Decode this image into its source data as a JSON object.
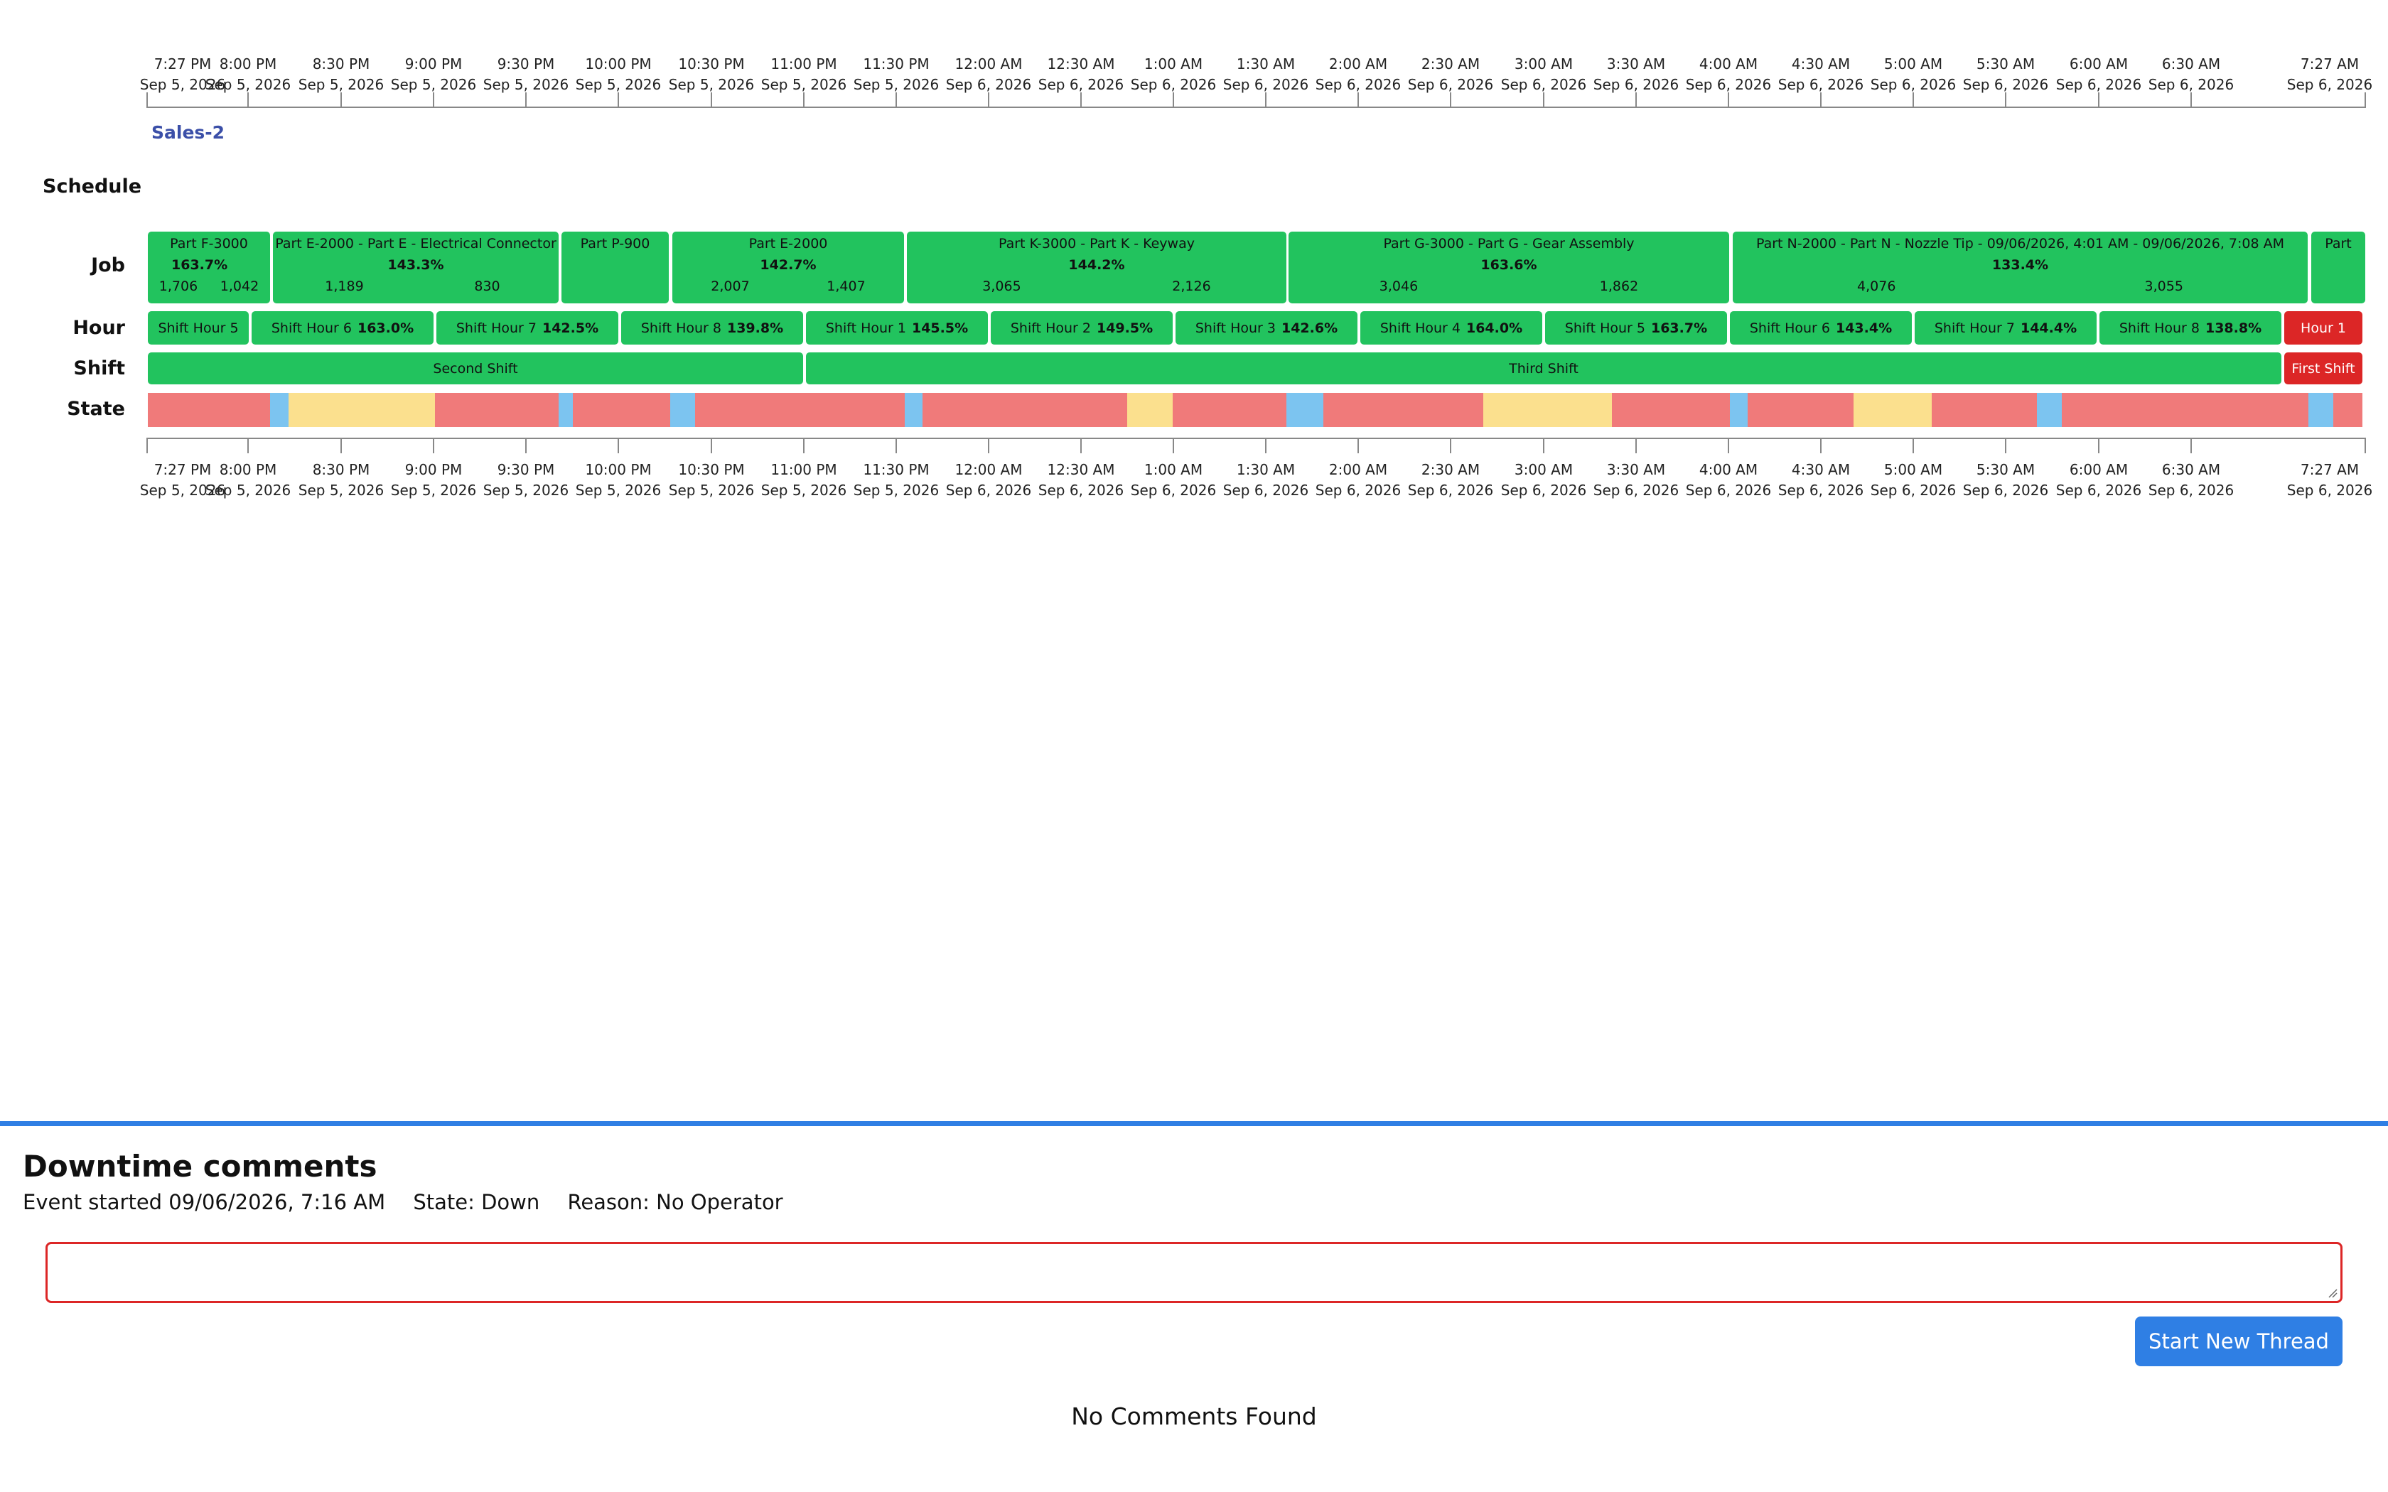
{
  "axis_ticks": [
    {
      "time": "7:27 PM",
      "date": "Sep 5, 2026"
    },
    {
      "time": "8:00 PM",
      "date": "Sep 5, 2026"
    },
    {
      "time": "8:30 PM",
      "date": "Sep 5, 2026"
    },
    {
      "time": "9:00 PM",
      "date": "Sep 5, 2026"
    },
    {
      "time": "9:30 PM",
      "date": "Sep 5, 2026"
    },
    {
      "time": "10:00 PM",
      "date": "Sep 5, 2026"
    },
    {
      "time": "10:30 PM",
      "date": "Sep 5, 2026"
    },
    {
      "time": "11:00 PM",
      "date": "Sep 5, 2026"
    },
    {
      "time": "11:30 PM",
      "date": "Sep 5, 2026"
    },
    {
      "time": "12:00 AM",
      "date": "Sep 6, 2026"
    },
    {
      "time": "12:30 AM",
      "date": "Sep 6, 2026"
    },
    {
      "time": "1:00 AM",
      "date": "Sep 6, 2026"
    },
    {
      "time": "1:30 AM",
      "date": "Sep 6, 2026"
    },
    {
      "time": "2:00 AM",
      "date": "Sep 6, 2026"
    },
    {
      "time": "2:30 AM",
      "date": "Sep 6, 2026"
    },
    {
      "time": "3:00 AM",
      "date": "Sep 6, 2026"
    },
    {
      "time": "3:30 AM",
      "date": "Sep 6, 2026"
    },
    {
      "time": "4:00 AM",
      "date": "Sep 6, 2026"
    },
    {
      "time": "4:30 AM",
      "date": "Sep 6, 2026"
    },
    {
      "time": "5:00 AM",
      "date": "Sep 6, 2026"
    },
    {
      "time": "5:30 AM",
      "date": "Sep 6, 2026"
    },
    {
      "time": "6:00 AM",
      "date": "Sep 6, 2026"
    },
    {
      "time": "6:30 AM",
      "date": "Sep 6, 2026"
    },
    {
      "time": "7:27 AM",
      "date": "Sep 6, 2026"
    }
  ],
  "line_name": "Sales-2",
  "row_labels": {
    "schedule": "Schedule",
    "job": "Job",
    "hour": "Hour",
    "shift": "Shift",
    "state": "State"
  },
  "jobs": [
    {
      "title": "Part F-3000",
      "pct": "163.7%",
      "a": "1,706",
      "b": "1,042"
    },
    {
      "title": "Part E-2000 - Part E - Electrical Connector",
      "pct": "143.3%",
      "a": "1,189",
      "b": "830"
    },
    {
      "title": "Part P-900",
      "pct": "",
      "a": "",
      "b": ""
    },
    {
      "title": "Part E-2000",
      "pct": "142.7%",
      "a": "2,007",
      "b": "1,407"
    },
    {
      "title": "Part K-3000 - Part K - Keyway",
      "pct": "144.2%",
      "a": "3,065",
      "b": "2,126"
    },
    {
      "title": "Part G-3000 - Part G - Gear Assembly",
      "pct": "163.6%",
      "a": "3,046",
      "b": "1,862"
    },
    {
      "title": "Part N-2000 - Part N - Nozzle Tip - 09/06/2026, 4:01 AM - 09/06/2026, 7:08 AM",
      "pct": "133.4%",
      "a": "4,076",
      "b": "3,055"
    },
    {
      "title": "Part",
      "pct": "",
      "a": "",
      "b": ""
    }
  ],
  "hours": [
    {
      "label": "Shift Hour 5",
      "pct": "",
      "color": "green"
    },
    {
      "label": "Shift Hour 6",
      "pct": "163.0%",
      "color": "green"
    },
    {
      "label": "Shift Hour 7",
      "pct": "142.5%",
      "color": "green"
    },
    {
      "label": "Shift Hour 8",
      "pct": "139.8%",
      "color": "green"
    },
    {
      "label": "Shift Hour 1",
      "pct": "145.5%",
      "color": "green"
    },
    {
      "label": "Shift Hour 2",
      "pct": "149.5%",
      "color": "green"
    },
    {
      "label": "Shift Hour 3",
      "pct": "142.6%",
      "color": "green"
    },
    {
      "label": "Shift Hour 4",
      "pct": "164.0%",
      "color": "green"
    },
    {
      "label": "Shift Hour 5",
      "pct": "163.7%",
      "color": "green"
    },
    {
      "label": "Shift Hour 6",
      "pct": "143.4%",
      "color": "green"
    },
    {
      "label": "Shift Hour 7",
      "pct": "144.4%",
      "color": "green"
    },
    {
      "label": "Shift Hour 8",
      "pct": "138.8%",
      "color": "green"
    },
    {
      "label": "Hour 1",
      "pct": "",
      "color": "red"
    }
  ],
  "shifts": [
    {
      "label": "Second Shift",
      "color": "green"
    },
    {
      "label": "Third Shift",
      "color": "green"
    },
    {
      "label": "First Shift",
      "color": "red"
    }
  ],
  "state_colors": {
    "down": "#f07a7a",
    "idle": "#fbe08e",
    "setup": "#7cc4f0"
  },
  "downtime": {
    "title": "Downtime comments",
    "event_started": "Event started 09/06/2026, 7:16 AM",
    "state": "State: Down",
    "reason": "Reason: No Operator",
    "comment_value": "",
    "button_label": "Start New Thread",
    "empty_message": "No Comments Found"
  },
  "colors": {
    "accent": "#2f7fe4",
    "running": "#22c35e",
    "alert": "#dc2626",
    "line_name": "#3b4fa8"
  }
}
